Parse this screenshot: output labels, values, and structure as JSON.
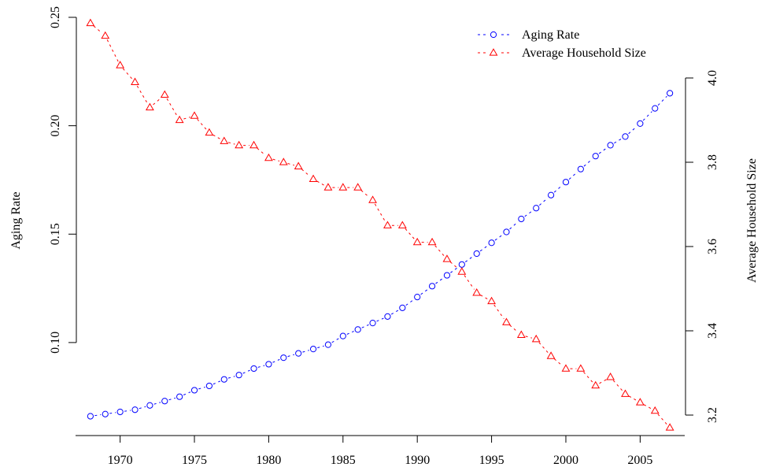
{
  "chart_data": {
    "type": "line",
    "title": "",
    "xlabel": "",
    "ylabel": "Aging Rate",
    "y2label": "Average Household Size",
    "xlim": [
      1967,
      2008
    ],
    "ylim": [
      0.06,
      0.25
    ],
    "y2lim": [
      3.17,
      4.0
    ],
    "x_ticks": [
      1970,
      1975,
      1980,
      1985,
      1990,
      1995,
      2000,
      2005
    ],
    "y_ticks": [
      0.1,
      0.15,
      0.2,
      0.25
    ],
    "y_tick_labels": [
      "0.10",
      "0.15",
      "0.20",
      "0.25"
    ],
    "y2_ticks": [
      3.2,
      3.4,
      3.6,
      3.8,
      4.0
    ],
    "y2_tick_labels": [
      "3.2",
      "3.4",
      "3.6",
      "3.8",
      "4.0"
    ],
    "grid": false,
    "legend_position": "top-right",
    "x": [
      1968,
      1969,
      1970,
      1971,
      1972,
      1973,
      1974,
      1975,
      1976,
      1977,
      1978,
      1979,
      1980,
      1981,
      1982,
      1983,
      1984,
      1985,
      1986,
      1987,
      1988,
      1989,
      1990,
      1991,
      1992,
      1993,
      1994,
      1995,
      1996,
      1997,
      1998,
      1999,
      2000,
      2001,
      2002,
      2003,
      2004,
      2005,
      2006,
      2007
    ],
    "series": [
      {
        "name": "Aging Rate",
        "axis": "left",
        "color": "#0000ff",
        "marker": "circle",
        "values": [
          0.066,
          0.067,
          0.068,
          0.069,
          0.071,
          0.073,
          0.075,
          0.078,
          0.08,
          0.083,
          0.085,
          0.088,
          0.09,
          0.093,
          0.095,
          0.097,
          0.099,
          0.103,
          0.106,
          0.109,
          0.112,
          0.116,
          0.121,
          0.126,
          0.131,
          0.136,
          0.141,
          0.146,
          0.151,
          0.157,
          0.162,
          0.168,
          0.174,
          0.18,
          0.186,
          0.191,
          0.195,
          0.201,
          0.208,
          0.215
        ]
      },
      {
        "name": "Average Household Size",
        "axis": "right",
        "color": "#ff0000",
        "marker": "triangle",
        "values": [
          4.13,
          4.1,
          4.03,
          3.99,
          3.93,
          3.96,
          3.9,
          3.91,
          3.87,
          3.85,
          3.84,
          3.84,
          3.81,
          3.8,
          3.79,
          3.76,
          3.74,
          3.74,
          3.74,
          3.71,
          3.65,
          3.65,
          3.61,
          3.61,
          3.57,
          3.54,
          3.49,
          3.47,
          3.42,
          3.39,
          3.38,
          3.34,
          3.31,
          3.31,
          3.27,
          3.29,
          3.25,
          3.23,
          3.21,
          3.17
        ]
      }
    ]
  }
}
